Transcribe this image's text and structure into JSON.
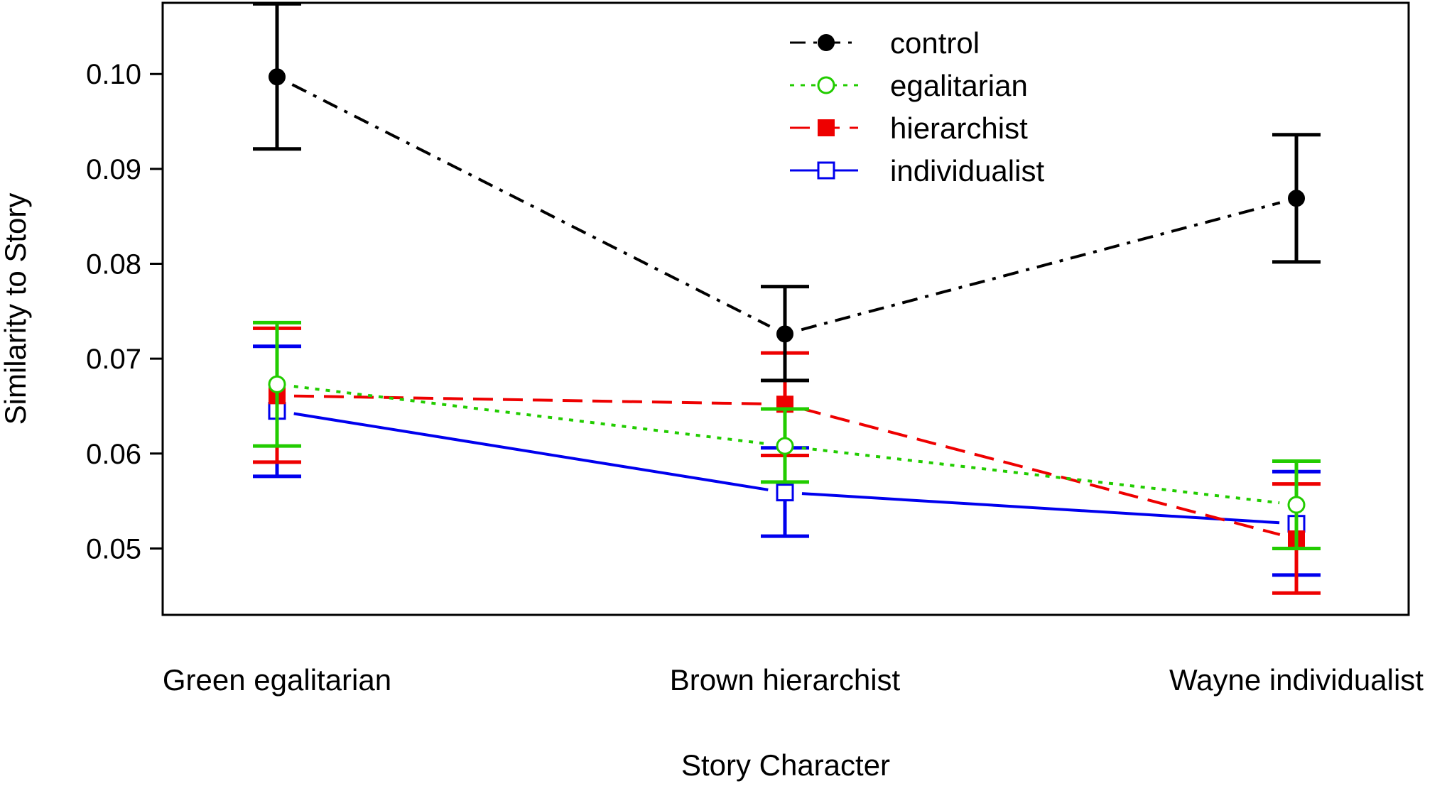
{
  "chart_data": {
    "type": "line",
    "title": "",
    "xlabel": "Story Character",
    "ylabel": "Similarity to Story",
    "categories": [
      "Green egalitarian",
      "Brown hierarchist",
      "Wayne individualist"
    ],
    "ylim": [
      0.043,
      0.1075
    ],
    "yticks": [
      0.05,
      0.06,
      0.07,
      0.08,
      0.09,
      0.1
    ],
    "ytick_labels": [
      "0.05",
      "0.06",
      "0.07",
      "0.08",
      "0.09",
      "0.10"
    ],
    "grid": false,
    "legend_position": "top-center",
    "error_bars": true,
    "series": [
      {
        "name": "control",
        "color": "#000000",
        "line_style": "dash-dot",
        "marker": "filled-circle",
        "values": [
          0.0997,
          0.0726,
          0.0869
        ],
        "error_low": [
          0.0921,
          0.0677,
          0.0802
        ],
        "error_high": [
          0.1074,
          0.0776,
          0.0936
        ]
      },
      {
        "name": "egalitarian",
        "color": "#22cc00",
        "line_style": "dotted",
        "marker": "open-circle",
        "values": [
          0.0673,
          0.0608,
          0.0546
        ],
        "error_low": [
          0.0608,
          0.057,
          0.05
        ],
        "error_high": [
          0.0738,
          0.0647,
          0.0592
        ]
      },
      {
        "name": "hierarchist",
        "color": "#ee0000",
        "line_style": "dashed",
        "marker": "filled-square",
        "values": [
          0.0661,
          0.0652,
          0.051
        ],
        "error_low": [
          0.0591,
          0.0598,
          0.0453
        ],
        "error_high": [
          0.0732,
          0.0706,
          0.0568
        ]
      },
      {
        "name": "individualist",
        "color": "#0000ee",
        "line_style": "solid",
        "marker": "open-square",
        "values": [
          0.0645,
          0.0559,
          0.0526
        ],
        "error_low": [
          0.0576,
          0.0513,
          0.0472
        ],
        "error_high": [
          0.0713,
          0.0606,
          0.0581
        ]
      }
    ]
  }
}
